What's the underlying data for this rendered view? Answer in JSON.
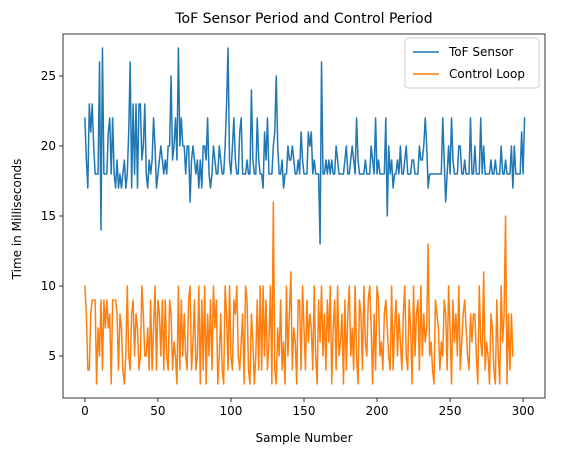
{
  "chart_data": {
    "type": "line",
    "title": "ToF Sensor Period and Control Period",
    "xlabel": "Sample Number",
    "ylabel": "Time in Milliseconds",
    "xlim": [
      -15,
      315
    ],
    "ylim": [
      2,
      28
    ],
    "xticks": [
      0,
      50,
      100,
      150,
      200,
      250,
      300
    ],
    "yticks": [
      5,
      10,
      15,
      20,
      25
    ],
    "grid": false,
    "legend_position": "top-right",
    "series": [
      {
        "name": "ToF Sensor",
        "color": "#1f77b4",
        "values": [
          22,
          19,
          17,
          23,
          21,
          23,
          20,
          18,
          18,
          18,
          26,
          14,
          27,
          18,
          18,
          18,
          21,
          22,
          18,
          22,
          18,
          17,
          19,
          17,
          18,
          17,
          18,
          19,
          17,
          18,
          21,
          26,
          17,
          23,
          18,
          23,
          17,
          23,
          23,
          19,
          20,
          23,
          18,
          17,
          19,
          18,
          19,
          22,
          20,
          17,
          18,
          19,
          20,
          19,
          18,
          19,
          18,
          20,
          20,
          25,
          19,
          20,
          22,
          19,
          27,
          20,
          22,
          20,
          20,
          18,
          20,
          20,
          16,
          19,
          20,
          19,
          18,
          19,
          17,
          19,
          17,
          20,
          20,
          19,
          22,
          18,
          17,
          18,
          20,
          19,
          18,
          18,
          20,
          19,
          18,
          18,
          20,
          23,
          27,
          19,
          18,
          20,
          22,
          19,
          18,
          18,
          21,
          22,
          18,
          18,
          18,
          19,
          18,
          18,
          24,
          19,
          18,
          18,
          22,
          19,
          18,
          18,
          17,
          21,
          19,
          22,
          18,
          18,
          18,
          20,
          21,
          25,
          20,
          18,
          18,
          19,
          17,
          18,
          18,
          20,
          19,
          19,
          20,
          19,
          18,
          18,
          19,
          18,
          21,
          19,
          18,
          18,
          18,
          21,
          20,
          21,
          18,
          19,
          18,
          18,
          18,
          13,
          26,
          18,
          18,
          19,
          18,
          19,
          18,
          19,
          18,
          18,
          20,
          19,
          18,
          18,
          18,
          18,
          19,
          20,
          18,
          18,
          19,
          20,
          19,
          18,
          22,
          19,
          18,
          18,
          18,
          18,
          19,
          18,
          18,
          18,
          20,
          19,
          18,
          22,
          18,
          19,
          18,
          18,
          18,
          18,
          22,
          15,
          20,
          18,
          19,
          17,
          18,
          18,
          19,
          18,
          20,
          18,
          18,
          19,
          20,
          18,
          18,
          18,
          19,
          19,
          18,
          18,
          18,
          20,
          19,
          19,
          20,
          22,
          20,
          17,
          18,
          18,
          18,
          18,
          18,
          18,
          18,
          18,
          18,
          22,
          19,
          16,
          18,
          20,
          18,
          22,
          19,
          18,
          18,
          18,
          20,
          20,
          18,
          18,
          19,
          18,
          18,
          18,
          22,
          18,
          18,
          20,
          18,
          18,
          18,
          22,
          18,
          20,
          18,
          18,
          18,
          18,
          19,
          18,
          18,
          19,
          18,
          18,
          18,
          20,
          18,
          18,
          19,
          18,
          18,
          18,
          20,
          17,
          20,
          18,
          18,
          18,
          18,
          21,
          18,
          22
        ]
      },
      {
        "name": "Control Loop",
        "color": "#ff7f0e",
        "values": [
          10,
          8,
          4,
          4,
          8,
          9,
          9,
          9,
          3,
          7,
          5,
          9,
          4,
          9,
          7,
          9,
          7,
          8,
          3,
          9,
          9,
          9,
          8,
          4,
          8,
          7,
          4,
          3,
          5,
          10,
          5,
          4,
          8,
          9,
          5,
          8,
          7,
          4,
          5,
          10,
          8,
          5,
          5,
          7,
          4,
          9,
          4,
          7,
          10,
          4,
          9,
          8,
          5,
          9,
          4,
          9,
          5,
          4,
          9,
          8,
          4,
          6,
          5,
          3,
          10,
          4,
          9,
          5,
          8,
          5,
          4,
          9,
          10,
          4,
          6,
          9,
          4,
          5,
          10,
          3,
          9,
          4,
          10,
          3,
          8,
          5,
          9,
          4,
          10,
          7,
          9,
          3,
          5,
          8,
          4,
          3,
          10,
          8,
          4,
          10,
          5,
          4,
          9,
          8,
          10,
          5,
          4,
          6,
          8,
          3,
          10,
          9,
          4,
          3,
          8,
          6,
          3,
          5,
          9,
          4,
          10,
          4,
          10,
          5,
          9,
          4,
          6,
          10,
          3,
          16,
          4,
          3,
          7,
          5,
          9,
          4,
          6,
          3,
          10,
          5,
          8,
          11,
          4,
          7,
          6,
          3,
          9,
          9,
          4,
          10,
          7,
          4,
          9,
          6,
          8,
          7,
          4,
          10,
          5,
          3,
          9,
          6,
          10,
          5,
          8,
          4,
          9,
          6,
          10,
          3,
          7,
          9,
          4,
          10,
          5,
          6,
          8,
          3,
          9,
          4,
          8,
          10,
          5,
          7,
          4,
          10,
          5,
          3,
          9,
          8,
          4,
          10,
          6,
          5,
          9,
          10,
          7,
          3,
          8,
          4,
          10,
          9,
          5,
          6,
          4,
          8,
          9,
          7,
          5,
          4,
          10,
          4,
          7,
          9,
          5,
          8,
          6,
          4,
          8,
          10,
          5,
          4,
          9,
          7,
          3,
          10,
          5,
          8,
          9,
          4,
          10,
          5,
          8,
          6,
          7,
          13,
          5,
          6,
          4,
          3,
          9,
          8,
          7,
          4,
          6,
          5,
          9,
          8,
          4,
          10,
          7,
          3,
          9,
          6,
          8,
          5,
          10,
          4,
          6,
          8,
          9,
          7,
          5,
          4,
          8,
          6,
          8,
          8,
          5,
          3,
          10,
          6,
          5,
          11,
          4,
          6,
          5,
          3,
          8,
          7,
          4,
          3,
          9,
          5,
          3,
          10,
          6,
          8,
          15,
          3,
          8,
          4,
          8,
          5
        ]
      }
    ]
  }
}
